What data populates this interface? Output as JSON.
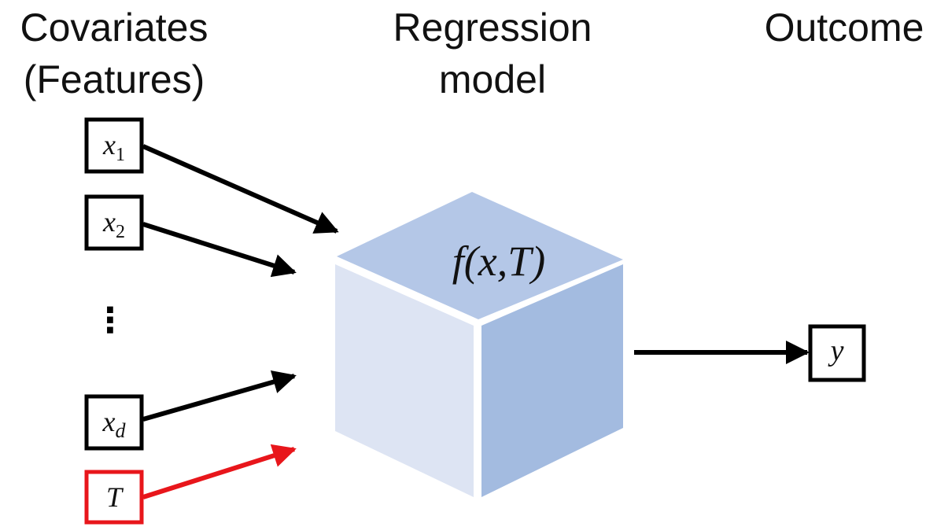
{
  "headers": {
    "covariates": [
      "Covariates",
      "(Features)"
    ],
    "model": [
      "Regression",
      "model"
    ],
    "outcome": "Outcome"
  },
  "inputs": [
    {
      "label": "x",
      "subscript": "1"
    },
    {
      "label": "x",
      "subscript": "2"
    },
    {
      "label": "x",
      "subscript": "d"
    },
    {
      "label": "T"
    }
  ],
  "ellipsis": "⋮",
  "model_label": "f(x,T)",
  "output": {
    "label": "y"
  }
}
